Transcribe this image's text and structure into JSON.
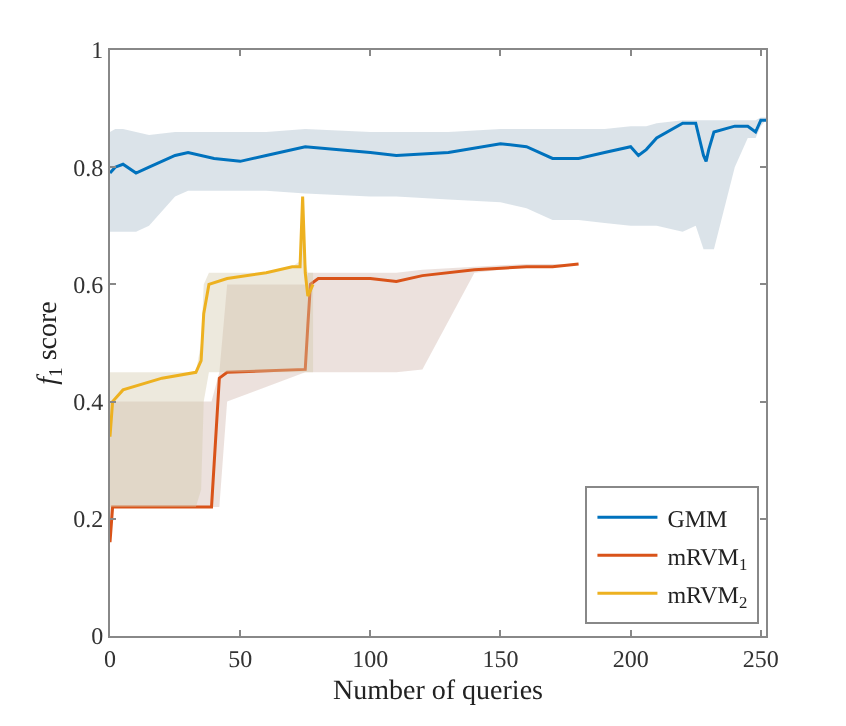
{
  "chart_data": {
    "type": "line",
    "xlabel": "Number of queries",
    "ylabel": "f$_{1}$ score",
    "xlim": [
      0,
      252
    ],
    "ylim": [
      0,
      1
    ],
    "xticks": [
      0,
      50,
      100,
      150,
      200,
      250
    ],
    "yticks": [
      0,
      {
        "value": 0.2,
        "label": "0.2"
      },
      {
        "value": 0.4,
        "label": "0.4"
      },
      {
        "value": 0.6,
        "label": "0.6"
      },
      {
        "value": 0.8,
        "label": "0.8"
      },
      1
    ],
    "legend": "bottom right",
    "marker": "none",
    "line_style": "solid",
    "series": [
      {
        "name": "GMM",
        "color": "#0072bd",
        "x": [
          0,
          2,
          5,
          10,
          15,
          25,
          30,
          40,
          50,
          60,
          75,
          100,
          110,
          130,
          150,
          160,
          170,
          180,
          190,
          200,
          203,
          206,
          210,
          220,
          225,
          228,
          229,
          230,
          232,
          240,
          245,
          248,
          250,
          252
        ],
        "values": [
          0.79,
          0.8,
          0.805,
          0.79,
          0.8,
          0.82,
          0.825,
          0.815,
          0.81,
          0.82,
          0.835,
          0.825,
          0.82,
          0.825,
          0.84,
          0.835,
          0.815,
          0.815,
          0.825,
          0.835,
          0.82,
          0.83,
          0.85,
          0.875,
          0.875,
          0.82,
          0.81,
          0.83,
          0.86,
          0.87,
          0.87,
          0.86,
          0.88,
          0.88
        ],
        "lower": [
          0.69,
          0.69,
          0.69,
          0.69,
          0.7,
          0.75,
          0.76,
          0.76,
          0.76,
          0.76,
          0.755,
          0.75,
          0.75,
          0.745,
          0.74,
          0.73,
          0.71,
          0.71,
          0.705,
          0.7,
          0.7,
          0.7,
          0.7,
          0.69,
          0.7,
          0.66,
          0.66,
          0.66,
          0.66,
          0.8,
          0.85,
          0.85,
          0.87,
          0.88
        ],
        "upper": [
          0.86,
          0.865,
          0.865,
          0.86,
          0.855,
          0.86,
          0.86,
          0.86,
          0.86,
          0.86,
          0.865,
          0.86,
          0.86,
          0.86,
          0.865,
          0.865,
          0.865,
          0.865,
          0.865,
          0.87,
          0.87,
          0.87,
          0.875,
          0.88,
          0.88,
          0.88,
          0.88,
          0.88,
          0.88,
          0.88,
          0.88,
          0.88,
          0.885,
          0.885
        ]
      },
      {
        "name": "mRVM$_{1}$",
        "color": "#d95319",
        "x": [
          0,
          1,
          39,
          42,
          45,
          75,
          76,
          77,
          80,
          100,
          110,
          120,
          140,
          160,
          170,
          180
        ],
        "values": [
          0.16,
          0.22,
          0.22,
          0.44,
          0.45,
          0.455,
          0.53,
          0.6,
          0.61,
          0.61,
          0.605,
          0.615,
          0.625,
          0.63,
          0.63,
          0.635
        ],
        "lower": [
          0.16,
          0.22,
          0.22,
          0.22,
          0.4,
          0.45,
          0.45,
          0.45,
          0.45,
          0.45,
          0.45,
          0.455,
          0.62,
          0.63,
          0.63,
          0.635
        ],
        "upper": [
          0.4,
          0.4,
          0.4,
          0.45,
          0.6,
          0.6,
          0.62,
          0.62,
          0.62,
          0.62,
          0.62,
          0.625,
          0.63,
          0.635,
          0.635,
          0.635
        ]
      },
      {
        "name": "mRVM$_{2}$",
        "color": "#edb120",
        "x": [
          0,
          1,
          5,
          20,
          33,
          35,
          36,
          38,
          45,
          60,
          70,
          73,
          74,
          75,
          76,
          78
        ],
        "values": [
          0.34,
          0.4,
          0.42,
          0.44,
          0.45,
          0.47,
          0.55,
          0.6,
          0.61,
          0.62,
          0.63,
          0.63,
          0.75,
          0.62,
          0.58,
          0.6
        ],
        "lower": [
          0.22,
          0.22,
          0.22,
          0.22,
          0.22,
          0.25,
          0.4,
          0.45,
          0.45,
          0.45,
          0.45,
          0.45,
          0.45,
          0.45,
          0.45,
          0.45
        ],
        "upper": [
          0.45,
          0.45,
          0.45,
          0.45,
          0.45,
          0.5,
          0.6,
          0.62,
          0.62,
          0.62,
          0.63,
          0.64,
          0.75,
          0.64,
          0.62,
          0.62
        ]
      }
    ]
  }
}
